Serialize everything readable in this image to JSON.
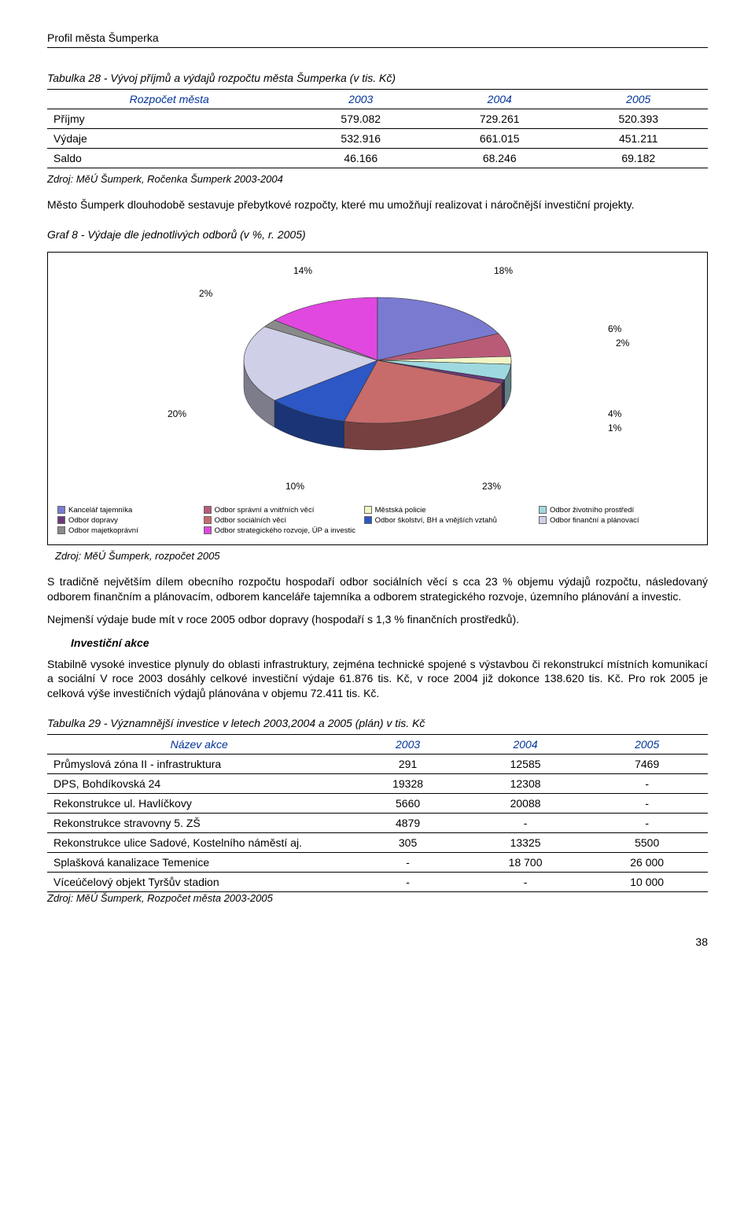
{
  "header": "Profil města Šumperka",
  "page_number": "38",
  "table28": {
    "title": "Tabulka 28 - Vývoj příjmů a výdajů rozpočtu města Šumperka (v tis. Kč)",
    "columns": [
      "Rozpočet města",
      "2003",
      "2004",
      "2005"
    ],
    "rows": [
      [
        "Příjmy",
        "579.082",
        "729.261",
        "520.393"
      ],
      [
        "Výdaje",
        "532.916",
        "661.015",
        "451.211"
      ],
      [
        "Saldo",
        "46.166",
        "68.246",
        "69.182"
      ]
    ],
    "source": "Zdroj: MěÚ Šumperk, Ročenka Šumperk 2003-2004"
  },
  "para1": "Město Šumperk dlouhodobě sestavuje přebytkové rozpočty, které mu umožňují realizovat i náročnější investiční projekty.",
  "chart": {
    "title": "Graf 8  - Výdaje dle jednotlivých odborů (v %, r. 2005)",
    "type": "pie3d",
    "slices": [
      {
        "label": "Kancelář tajemníka",
        "value": 18,
        "color": "#7a7ad1"
      },
      {
        "label": "Odbor správní a vnitřních věcí",
        "value": 6,
        "color": "#b95b77"
      },
      {
        "label": "Městská policie",
        "value": 2,
        "color": "#f2f5c5"
      },
      {
        "label": "Odbor životního prostředí",
        "value": 4,
        "color": "#9fd9e0"
      },
      {
        "label": "Odbor dopravy",
        "value": 1,
        "color": "#6b3a7a"
      },
      {
        "label": "Odbor sociálních věcí",
        "value": 23,
        "color": "#c76b6b"
      },
      {
        "label": "Odbor školství, BH a vnějších vztahů",
        "value": 10,
        "color": "#2c57c4"
      },
      {
        "label": "Odbor finanční a plánovací",
        "value": 20,
        "color": "#cfcfe8"
      },
      {
        "label": "Odbor majetkoprávní",
        "value": 2,
        "color": "#8a8a8a"
      },
      {
        "label": "Odbor strategického rozvoje, ÚP a investic",
        "value": 14,
        "color": "#e048e0"
      }
    ],
    "pct_labels": {
      "p14": "14%",
      "p18": "18%",
      "p2a": "2%",
      "p6": "6%",
      "p2b": "2%",
      "p20": "20%",
      "p4": "4%",
      "p1": "1%",
      "p10": "10%",
      "p23": "23%"
    },
    "background_color": "#ffffff",
    "source": "Zdroj: MěÚ Šumperk, rozpočet 2005"
  },
  "para2": "S tradičně největším dílem obecního rozpočtu hospodaří odbor sociálních věcí s cca 23 % objemu výdajů rozpočtu, následovaný odborem finančním a plánovacím, odborem kanceláře tajemníka a odborem strategického rozvoje, územního plánování a investic.",
  "para3": "Nejmenší výdaje bude mít v roce 2005 odbor dopravy (hospodaří s 1,3 % finančních prostředků).",
  "subsection_title": "Investiční akce",
  "para4": "Stabilně vysoké investice plynuly do oblasti infrastruktury, zejména technické spojené s výstavbou či rekonstrukcí místních komunikací a sociální V roce 2003 dosáhly celkové investiční výdaje 61.876 tis. Kč, v roce 2004 již dokonce 138.620 tis. Kč. Pro rok 2005 je celková výše investičních výdajů plánována v objemu 72.411 tis. Kč.",
  "table29": {
    "title": "Tabulka 29 - Významnější investice v letech 2003,2004 a 2005 (plán) v tis. Kč",
    "columns": [
      "Název akce",
      "2003",
      "2004",
      "2005"
    ],
    "rows": [
      [
        "Průmyslová zóna II - infrastruktura",
        "291",
        "12585",
        "7469"
      ],
      [
        "DPS, Bohdíkovská 24",
        "19328",
        "12308",
        "-"
      ],
      [
        "Rekonstrukce ul. Havlíčkovy",
        "5660",
        "20088",
        "-"
      ],
      [
        "Rekonstrukce stravovny 5. ZŠ",
        "4879",
        "-",
        "-"
      ],
      [
        "Rekonstrukce ulice Sadové, Kostelního náměstí aj.",
        "305",
        "13325",
        "5500"
      ],
      [
        "Splašková kanalizace Temenice",
        "-",
        "18 700",
        "26 000"
      ],
      [
        "Víceúčelový objekt Tyršův  stadion",
        "-",
        "-",
        "10 000"
      ]
    ],
    "source": "Zdroj: MěÚ Šumperk, Rozpočet města 2003-2005"
  }
}
